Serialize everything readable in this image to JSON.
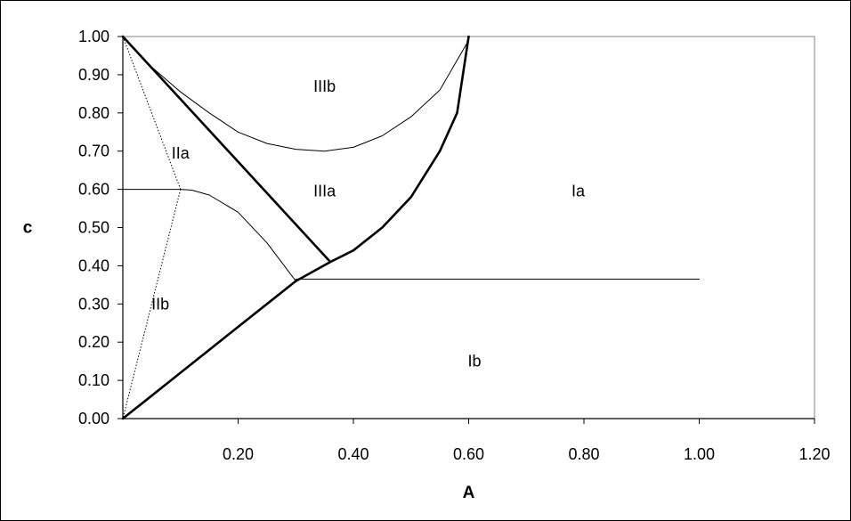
{
  "chart_data": {
    "type": "line",
    "title": "",
    "xlabel": "A",
    "ylabel": "c",
    "xlim": [
      0,
      1.2
    ],
    "ylim": [
      0,
      1.0
    ],
    "x_ticks": [
      "0.20",
      "0.40",
      "0.60",
      "0.80",
      "1.00",
      "1.20"
    ],
    "y_ticks": [
      "0.00",
      "0.10",
      "0.20",
      "0.30",
      "0.40",
      "0.50",
      "0.60",
      "0.70",
      "0.80",
      "0.90",
      "1.00"
    ],
    "grid": false,
    "legend": "none",
    "colors": {
      "lines": "#000000",
      "background": "#ffffff"
    },
    "series": [
      {
        "style": "thick",
        "x": [
          0,
          0.05,
          0.1,
          0.15,
          0.2,
          0.25,
          0.3
        ],
        "y": [
          0,
          0.06,
          0.12,
          0.18,
          0.24,
          0.3,
          0.36
        ]
      },
      {
        "style": "thick",
        "x": [
          0.3,
          0.36
        ],
        "y": [
          0.36,
          0.41
        ]
      },
      {
        "style": "thick",
        "x": [
          0.36,
          0.4,
          0.45,
          0.5,
          0.55,
          0.58,
          0.6
        ],
        "y": [
          0.41,
          0.44,
          0.5,
          0.58,
          0.7,
          0.8,
          1.0
        ]
      },
      {
        "style": "thick",
        "x": [
          0,
          0.36
        ],
        "y": [
          1.0,
          0.41
        ]
      },
      {
        "style": "thin",
        "x": [
          0,
          0.05,
          0.1,
          0.15,
          0.2,
          0.25,
          0.3,
          0.35,
          0.4,
          0.45,
          0.5,
          0.55,
          0.6
        ],
        "y": [
          1.0,
          0.92,
          0.855,
          0.8,
          0.75,
          0.72,
          0.705,
          0.7,
          0.71,
          0.74,
          0.79,
          0.86,
          0.99
        ]
      },
      {
        "style": "thin",
        "x": [
          0,
          0.1,
          0.12,
          0.15,
          0.2,
          0.25,
          0.3
        ],
        "y": [
          0.6,
          0.6,
          0.598,
          0.585,
          0.54,
          0.46,
          0.36
        ]
      },
      {
        "style": "thin",
        "x": [
          0.3,
          1.0
        ],
        "y": [
          0.365,
          0.365
        ]
      },
      {
        "style": "dotted",
        "x": [
          0,
          0.1
        ],
        "y": [
          1.0,
          0.6
        ]
      },
      {
        "style": "dotted",
        "x": [
          0.1,
          0
        ],
        "y": [
          0.6,
          0
        ]
      }
    ],
    "annotations": [
      {
        "text": "IIIb",
        "x": 0.35,
        "y": 0.87
      },
      {
        "text": "IIa",
        "x": 0.1,
        "y": 0.695
      },
      {
        "text": "IIIa",
        "x": 0.35,
        "y": 0.595
      },
      {
        "text": "Ia",
        "x": 0.79,
        "y": 0.595
      },
      {
        "text": "IIb",
        "x": 0.065,
        "y": 0.3
      },
      {
        "text": "Ib",
        "x": 0.61,
        "y": 0.15
      }
    ]
  }
}
